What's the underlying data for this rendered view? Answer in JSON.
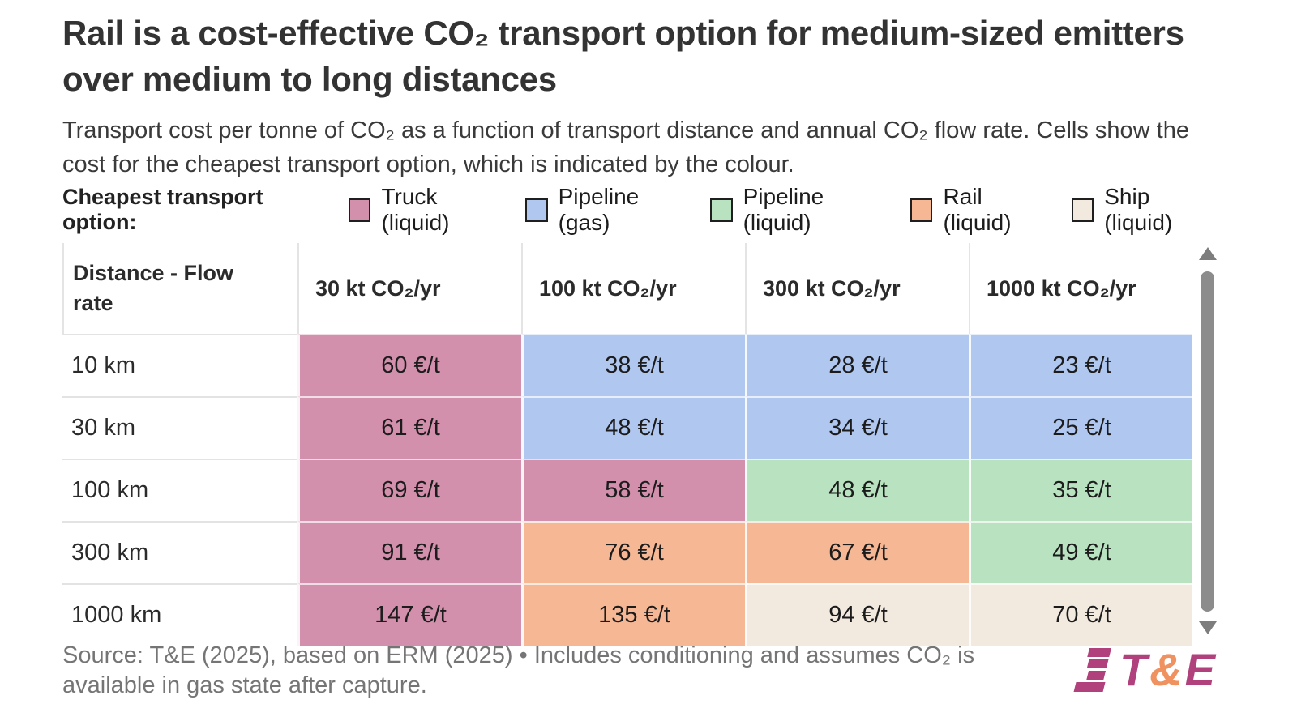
{
  "title": "Rail is a cost-effective CO₂ transport option for medium-sized emitters over medium to long distances",
  "subtitle": "Transport cost per tonne of CO₂ as a function of transport distance and annual CO₂ flow rate. Cells show the cost for the cheapest transport option, which is indicated by the colour.",
  "legend": {
    "label": "Cheapest transport option:",
    "items": [
      {
        "name": "truck_liquid",
        "label": "Truck (liquid)",
        "color": "#d390ac"
      },
      {
        "name": "pipeline_gas",
        "label": "Pipeline (gas)",
        "color": "#b0c7f0"
      },
      {
        "name": "pipeline_liquid",
        "label": "Pipeline (liquid)",
        "color": "#b9e3c0"
      },
      {
        "name": "rail_liquid",
        "label": "Rail (liquid)",
        "color": "#f6b794"
      },
      {
        "name": "ship_liquid",
        "label": "Ship (liquid)",
        "color": "#f3eadf"
      }
    ]
  },
  "table": {
    "corner_header": "Distance - Flow rate",
    "column_headers": [
      "30 kt CO₂/yr",
      "100 kt CO₂/yr",
      "300 kt CO₂/yr",
      "1000 kt CO₂/yr"
    ]
  },
  "chart_data": {
    "type": "heatmap",
    "title": "Rail is a cost-effective CO₂ transport option for medium-sized emitters over medium to long distances",
    "subtitle": "Transport cost per tonne of CO₂ as a function of transport distance and annual CO₂ flow rate. Cells show the cost for the cheapest transport option, which is indicated by the colour.",
    "x_label": "Annual CO₂ flow rate",
    "y_label": "Distance",
    "x_categories": [
      "30 kt CO₂/yr",
      "100 kt CO₂/yr",
      "300 kt CO₂/yr",
      "1000 kt CO₂/yr"
    ],
    "y_categories": [
      "10 km",
      "30 km",
      "100 km",
      "300 km",
      "1000 km"
    ],
    "unit": "€/t",
    "values": [
      [
        60,
        38,
        28,
        23
      ],
      [
        61,
        48,
        34,
        25
      ],
      [
        69,
        58,
        48,
        35
      ],
      [
        91,
        76,
        67,
        49
      ],
      [
        147,
        135,
        94,
        70
      ]
    ],
    "cheapest_option": [
      [
        "truck_liquid",
        "pipeline_gas",
        "pipeline_gas",
        "pipeline_gas"
      ],
      [
        "truck_liquid",
        "pipeline_gas",
        "pipeline_gas",
        "pipeline_gas"
      ],
      [
        "truck_liquid",
        "truck_liquid",
        "pipeline_liquid",
        "pipeline_liquid"
      ],
      [
        "truck_liquid",
        "rail_liquid",
        "rail_liquid",
        "pipeline_liquid"
      ],
      [
        "truck_liquid",
        "rail_liquid",
        "ship_liquid",
        "ship_liquid"
      ]
    ],
    "legend_position": "top"
  },
  "footer": {
    "source": "Source: T&E (2025), based on ERM (2025) • Includes conditioning and assumes CO₂ is available in gas state after capture.",
    "logo_text": "T&E",
    "logo_colors": {
      "primary": "#b0417c",
      "accent": "#f09160"
    }
  }
}
